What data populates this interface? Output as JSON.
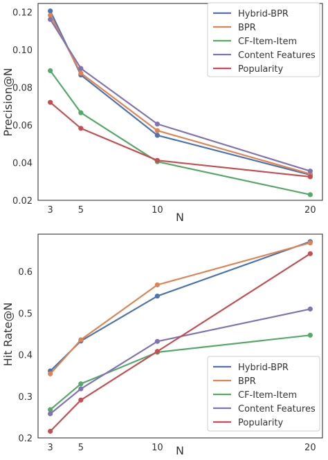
{
  "chart_data": [
    {
      "type": "line",
      "xlabel": "N",
      "ylabel": "Precision@N",
      "x": [
        3,
        5,
        10,
        20
      ],
      "xlim": [
        2.2,
        20.8
      ],
      "ylim": [
        0.02,
        0.1245
      ],
      "xticks": [
        3,
        5,
        10,
        20
      ],
      "yticks": [
        0.02,
        0.04,
        0.06,
        0.08,
        0.1,
        0.12
      ],
      "ytick_labels": [
        "0.02",
        "0.04",
        "0.06",
        "0.08",
        "0.10",
        "0.12"
      ],
      "grid": false,
      "legend_position": "top-right",
      "series": [
        {
          "name": "Hybrid-BPR",
          "color": "#4c72b0",
          "values": [
            0.1205,
            0.0865,
            0.0545,
            0.0335
          ]
        },
        {
          "name": "BPR",
          "color": "#dd8452",
          "values": [
            0.1182,
            0.0875,
            0.057,
            0.034
          ]
        },
        {
          "name": "CF-Item-Item",
          "color": "#55a868",
          "values": [
            0.0888,
            0.0665,
            0.0405,
            0.023
          ]
        },
        {
          "name": "Content Features",
          "color": "#8172b3",
          "values": [
            0.116,
            0.09,
            0.0605,
            0.0355
          ]
        },
        {
          "name": "Popularity",
          "color": "#c44e52",
          "values": [
            0.072,
            0.0582,
            0.0412,
            0.0325
          ]
        }
      ]
    },
    {
      "type": "line",
      "xlabel": "N",
      "ylabel": "Hit Rate@N",
      "x": [
        3,
        5,
        10,
        20
      ],
      "xlim": [
        2.2,
        20.8
      ],
      "ylim": [
        0.2,
        0.69
      ],
      "xticks": [
        3,
        5,
        10,
        20
      ],
      "yticks": [
        0.2,
        0.3,
        0.4,
        0.5,
        0.6
      ],
      "ytick_labels": [
        "0.2",
        "0.3",
        "0.4",
        "0.5",
        "0.6"
      ],
      "grid": false,
      "legend_position": "bottom-right",
      "series": [
        {
          "name": "Hybrid-BPR",
          "color": "#4c72b0",
          "values": [
            0.361,
            0.433,
            0.541,
            0.672
          ]
        },
        {
          "name": "BPR",
          "color": "#dd8452",
          "values": [
            0.354,
            0.436,
            0.568,
            0.669
          ]
        },
        {
          "name": "CF-Item-Item",
          "color": "#55a868",
          "values": [
            0.268,
            0.33,
            0.406,
            0.447
          ]
        },
        {
          "name": "Content Features",
          "color": "#8172b3",
          "values": [
            0.258,
            0.318,
            0.432,
            0.51
          ]
        },
        {
          "name": "Popularity",
          "color": "#c44e52",
          "values": [
            0.216,
            0.291,
            0.408,
            0.643
          ]
        }
      ]
    }
  ]
}
